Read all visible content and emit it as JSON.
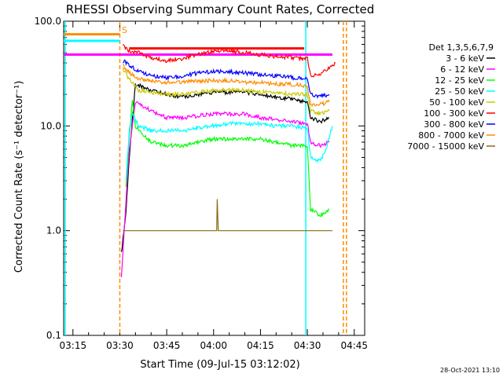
{
  "chart_data": {
    "type": "line",
    "title": "RHESSI Observing Summary Count Rates, Corrected",
    "ylabel": "Corrected Count Rate (s⁻¹ detector⁻¹)",
    "xlabel": "Start Time (09-Jul-15 03:12:02)",
    "date_stamp": "28-Oct-2021 13:10",
    "y_scale": "log",
    "ylim": [
      0.1,
      100.0
    ],
    "y_ticks": [
      {
        "value": 100.0,
        "label": "100.0"
      },
      {
        "value": 10.0,
        "label": "10.0"
      },
      {
        "value": 1.0,
        "label": "1.0"
      },
      {
        "value": 0.1,
        "label": "0.1"
      }
    ],
    "xlim": [
      "03:12:02",
      "04:48:20"
    ],
    "x_ticks": [
      "03:15",
      "03:30",
      "03:45",
      "04:00",
      "04:15",
      "04:30",
      "04:45"
    ],
    "legend_title": "Det 1,3,5,6,7,9",
    "legend_position": "right",
    "flag_labels": [
      "S"
    ],
    "series": [
      {
        "name": "3 - 6 keV",
        "color": "#000000",
        "points": [
          [
            "03:30:30",
            0.6
          ],
          [
            "03:32:00",
            1.5
          ],
          [
            "03:33:00",
            5
          ],
          [
            "03:35:00",
            25
          ],
          [
            "03:40:00",
            22
          ],
          [
            "03:45:00",
            20
          ],
          [
            "03:50:00",
            19
          ],
          [
            "03:55:00",
            20
          ],
          [
            "04:00:00",
            21
          ],
          [
            "04:05:00",
            21
          ],
          [
            "04:10:00",
            21
          ],
          [
            "04:15:00",
            20
          ],
          [
            "04:20:00",
            19
          ],
          [
            "04:25:00",
            18
          ],
          [
            "04:30:00",
            17
          ],
          [
            "04:31:00",
            12
          ],
          [
            "04:34:00",
            11
          ],
          [
            "04:37:00",
            12
          ]
        ]
      },
      {
        "name": "6 - 12 keV",
        "color": "#ff00ff",
        "points": [
          [
            "03:30:30",
            0.35
          ],
          [
            "03:32:00",
            2
          ],
          [
            "03:33:00",
            6
          ],
          [
            "03:35:00",
            17
          ],
          [
            "03:40:00",
            14
          ],
          [
            "03:45:00",
            12
          ],
          [
            "03:50:00",
            12
          ],
          [
            "03:55:00",
            12.5
          ],
          [
            "04:00:00",
            13
          ],
          [
            "04:05:00",
            13
          ],
          [
            "04:10:00",
            13
          ],
          [
            "04:15:00",
            12
          ],
          [
            "04:20:00",
            11.5
          ],
          [
            "04:25:00",
            11
          ],
          [
            "04:30:00",
            10.5
          ],
          [
            "04:31:00",
            7
          ],
          [
            "04:34:00",
            6.5
          ],
          [
            "04:37:00",
            7
          ]
        ]
      },
      {
        "name": "12 - 25 keV",
        "color": "#00ff00",
        "points": [
          [
            "03:32:00",
            2.5
          ],
          [
            "03:33:00",
            8
          ],
          [
            "03:34:00",
            17
          ],
          [
            "03:35:00",
            10
          ],
          [
            "03:40:00",
            7
          ],
          [
            "03:45:00",
            6.5
          ],
          [
            "03:50:00",
            6.5
          ],
          [
            "03:55:00",
            7
          ],
          [
            "04:00:00",
            7.5
          ],
          [
            "04:05:00",
            7.5
          ],
          [
            "04:10:00",
            7.5
          ],
          [
            "04:15:00",
            7.5
          ],
          [
            "04:20:00",
            7
          ],
          [
            "04:25:00",
            6.5
          ],
          [
            "04:30:00",
            6.5
          ],
          [
            "04:31:00",
            1.6
          ],
          [
            "04:34:00",
            1.4
          ],
          [
            "04:37:00",
            1.6
          ]
        ]
      },
      {
        "name": "25 - 50 keV",
        "color": "#00ffff",
        "points": [
          [
            "03:32:00",
            3
          ],
          [
            "03:33:00",
            9
          ],
          [
            "03:34:00",
            13
          ],
          [
            "03:36:00",
            10
          ],
          [
            "03:40:00",
            9
          ],
          [
            "03:45:00",
            9
          ],
          [
            "03:50:00",
            9
          ],
          [
            "03:55:00",
            9.5
          ],
          [
            "04:00:00",
            10
          ],
          [
            "04:05:00",
            10.5
          ],
          [
            "04:10:00",
            10.5
          ],
          [
            "04:15:00",
            10.5
          ],
          [
            "04:20:00",
            10
          ],
          [
            "04:25:00",
            10
          ],
          [
            "04:30:00",
            9.5
          ],
          [
            "04:31:00",
            5
          ],
          [
            "04:34:00",
            4.6
          ],
          [
            "04:36:00",
            6
          ],
          [
            "04:38:00",
            10
          ]
        ]
      },
      {
        "name": "50 - 100 keV",
        "color": "#c8c800",
        "points": [
          [
            "03:31:00",
            35
          ],
          [
            "03:33:00",
            28
          ],
          [
            "03:36:00",
            22
          ],
          [
            "03:40:00",
            21
          ],
          [
            "03:45:00",
            20
          ],
          [
            "03:50:00",
            20
          ],
          [
            "03:55:00",
            21
          ],
          [
            "04:00:00",
            22
          ],
          [
            "04:05:00",
            22
          ],
          [
            "04:10:00",
            22
          ],
          [
            "04:15:00",
            21
          ],
          [
            "04:20:00",
            21
          ],
          [
            "04:25:00",
            20
          ],
          [
            "04:30:00",
            20
          ],
          [
            "04:31:00",
            14
          ],
          [
            "04:34:00",
            13
          ],
          [
            "04:37:00",
            14
          ]
        ]
      },
      {
        "name": "100 - 300 keV",
        "color": "#ff0000",
        "points": [
          [
            "03:31:00",
            58
          ],
          [
            "03:33:00",
            52
          ],
          [
            "03:36:00",
            50
          ],
          [
            "03:40:00",
            45
          ],
          [
            "03:45:00",
            42
          ],
          [
            "03:50:00",
            44
          ],
          [
            "03:55:00",
            48
          ],
          [
            "04:00:00",
            52
          ],
          [
            "04:05:00",
            52
          ],
          [
            "04:10:00",
            50
          ],
          [
            "04:15:00",
            48
          ],
          [
            "04:20:00",
            46
          ],
          [
            "04:25:00",
            45
          ],
          [
            "04:30:00",
            44
          ],
          [
            "04:31:00",
            30
          ],
          [
            "04:34:00",
            31
          ],
          [
            "04:37:00",
            36
          ],
          [
            "04:39:00",
            40
          ]
        ]
      },
      {
        "name": "300 - 800 keV",
        "color": "#0000ff",
        "points": [
          [
            "03:31:00",
            42
          ],
          [
            "03:33:00",
            38
          ],
          [
            "03:36:00",
            33
          ],
          [
            "03:40:00",
            30
          ],
          [
            "03:45:00",
            29
          ],
          [
            "03:50:00",
            30
          ],
          [
            "03:55:00",
            32
          ],
          [
            "04:00:00",
            33
          ],
          [
            "04:05:00",
            33
          ],
          [
            "04:10:00",
            32
          ],
          [
            "04:15:00",
            31
          ],
          [
            "04:20:00",
            30
          ],
          [
            "04:25:00",
            29
          ],
          [
            "04:30:00",
            28
          ],
          [
            "04:31:00",
            20
          ],
          [
            "04:34:00",
            19
          ],
          [
            "04:37:00",
            20
          ]
        ]
      },
      {
        "name": "800 - 7000 keV",
        "color": "#ff8c00",
        "points": [
          [
            "03:31:00",
            38
          ],
          [
            "03:33:00",
            32
          ],
          [
            "03:36:00",
            28
          ],
          [
            "03:40:00",
            27
          ],
          [
            "03:45:00",
            26
          ],
          [
            "03:50:00",
            26
          ],
          [
            "03:55:00",
            27
          ],
          [
            "04:00:00",
            27
          ],
          [
            "04:05:00",
            27
          ],
          [
            "04:10:00",
            26
          ],
          [
            "04:15:00",
            26
          ],
          [
            "04:20:00",
            25
          ],
          [
            "04:25:00",
            25
          ],
          [
            "04:30:00",
            24
          ],
          [
            "04:31:00",
            16
          ],
          [
            "04:34:00",
            16
          ],
          [
            "04:37:00",
            17
          ]
        ]
      },
      {
        "name": "7000 - 15000 keV",
        "color": "#8b6914",
        "points": [
          [
            "03:31:00",
            1.0
          ],
          [
            "03:35:00",
            1.0
          ],
          [
            "03:45:00",
            1.0
          ],
          [
            "03:55:00",
            1.0
          ],
          [
            "04:00:00",
            1.0
          ],
          [
            "04:01:00",
            1.0
          ],
          [
            "04:01:10",
            2.0
          ],
          [
            "04:01:30",
            1.0
          ],
          [
            "04:10:00",
            1.0
          ],
          [
            "04:20:00",
            1.0
          ],
          [
            "04:30:00",
            1.0
          ],
          [
            "04:38:00",
            1.0
          ]
        ]
      }
    ],
    "reference_lines": [
      {
        "label": "red bar",
        "color": "#ff0000",
        "value": 55,
        "x_range": [
          "03:33:00",
          "04:29:00"
        ]
      },
      {
        "label": "magenta bar",
        "color": "#ff00ff",
        "value": 48,
        "x_range": [
          "03:12:02",
          "04:38:00"
        ]
      },
      {
        "label": "orange flag segment",
        "color": "#ff8c00",
        "value": 75,
        "x_range": [
          "03:12:02",
          "03:30:00"
        ]
      },
      {
        "label": "cyan flag segment",
        "color": "#00ffff",
        "value": 65,
        "x_range": [
          "03:12:02",
          "03:30:00"
        ]
      }
    ],
    "vertical_lines": [
      {
        "time": "03:12:30",
        "color": "#00ffff",
        "style": "solid"
      },
      {
        "time": "03:30:00",
        "color": "#ff8c00",
        "style": "dashed"
      },
      {
        "time": "04:29:30",
        "color": "#00ffff",
        "style": "solid"
      },
      {
        "time": "04:41:30",
        "color": "#ff8c00",
        "style": "dashed"
      },
      {
        "time": "04:42:30",
        "color": "#ff8c00",
        "style": "dashed"
      }
    ]
  }
}
